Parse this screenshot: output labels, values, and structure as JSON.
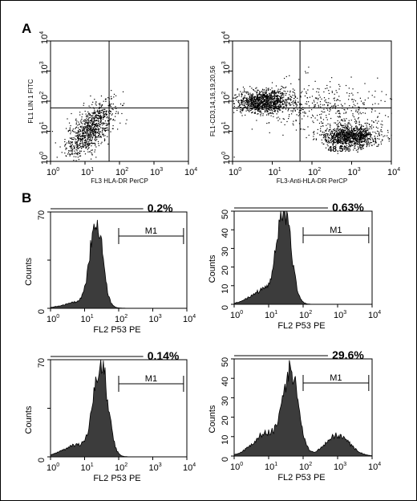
{
  "panel_letters": [
    "A",
    "B"
  ],
  "chart_data": [
    {
      "type": "scatter",
      "panel": "A",
      "xlabel": "FL3  HLA-DR PerCP",
      "ylabel": "FL1  LIN 1 FITC",
      "xlim": [
        1,
        10000
      ],
      "ylim": [
        1,
        10000
      ],
      "log_scale": true,
      "ticks": [
        "10",
        "10",
        "10",
        "10",
        "10"
      ],
      "tick_exponents": [
        "0",
        "1",
        "2",
        "3",
        "4"
      ],
      "quadrant_lines": {
        "x": 50,
        "y": 60
      },
      "clusters": [
        {
          "name": "",
          "x_center": 14,
          "y_center": 12,
          "spread": 0.35,
          "n": 900
        }
      ],
      "annotation": ""
    },
    {
      "type": "scatter",
      "panel": "A",
      "xlabel": "FL3-Anti-HLA-DR PerCP",
      "ylabel": "FL1-CD3,14,16,19,20,56",
      "xlim": [
        1,
        10000
      ],
      "ylim": [
        1,
        10000
      ],
      "log_scale": true,
      "ticks": [
        "10",
        "10",
        "10",
        "10",
        "10"
      ],
      "tick_exponents": [
        "0",
        "1",
        "2",
        "3",
        "4"
      ],
      "quadrant_lines": {
        "x": 50,
        "y": 60
      },
      "clusters": [
        {
          "name": "",
          "x_center": 6,
          "y_center": 100,
          "spread": 0.35,
          "n": 1100
        },
        {
          "name": "",
          "x_center": 900,
          "y_center": 7,
          "spread": 0.35,
          "n": 1100
        },
        {
          "name": "",
          "x_center": 200,
          "y_center": 60,
          "spread": 0.8,
          "n": 400
        }
      ],
      "annotation": "48.5%"
    },
    {
      "type": "area",
      "panel": "B",
      "xlabel": "FL2   P53 PE",
      "ylabel": "Counts",
      "xlim": [
        1,
        10000
      ],
      "ylim": [
        0,
        70
      ],
      "yticks": [
        0,
        35,
        70
      ],
      "ytick_labels": [
        "0",
        "",
        "70"
      ],
      "ticks": [
        "10",
        "10",
        "10",
        "10",
        "10"
      ],
      "tick_exponents": [
        "0",
        "1",
        "2",
        "3",
        "4"
      ],
      "gate_label": "M1",
      "gate_range": [
        100,
        8000
      ],
      "percent": "0.2%",
      "peaks": [
        {
          "center": 22,
          "height": 63,
          "width": 0.18
        },
        {
          "center": 8,
          "height": 5,
          "width": 0.45
        }
      ]
    },
    {
      "type": "area",
      "panel": "B",
      "xlabel": "FL2   P53 PE",
      "ylabel": "Counts",
      "xlim": [
        1,
        10000
      ],
      "ylim": [
        0,
        50
      ],
      "yticks": [
        0,
        10,
        20,
        30,
        40,
        50
      ],
      "ytick_labels": [
        "0",
        "10",
        "20",
        "30",
        "40",
        "50"
      ],
      "ticks": [
        "10",
        "10",
        "10",
        "10",
        "10"
      ],
      "tick_exponents": [
        "0",
        "1",
        "2",
        "3",
        "4"
      ],
      "gate_label": "M1",
      "gate_range": [
        100,
        8000
      ],
      "percent": "0.63%",
      "peaks": [
        {
          "center": 28,
          "height": 50,
          "width": 0.2
        },
        {
          "center": 8,
          "height": 8,
          "width": 0.4
        }
      ]
    },
    {
      "type": "area",
      "panel": "B",
      "xlabel": "FL2   P53 PE",
      "ylabel": "Counts",
      "xlim": [
        1,
        10000
      ],
      "ylim": [
        0,
        70
      ],
      "yticks": [
        0,
        35,
        70
      ],
      "ytick_labels": [
        "0",
        "",
        "70"
      ],
      "ticks": [
        "10",
        "10",
        "10",
        "10",
        "10"
      ],
      "tick_exponents": [
        "0",
        "1",
        "2",
        "3",
        "4"
      ],
      "gate_label": "M1",
      "gate_range": [
        100,
        8000
      ],
      "percent": "0.14%",
      "peaks": [
        {
          "center": 30,
          "height": 68,
          "width": 0.2
        },
        {
          "center": 7,
          "height": 9,
          "width": 0.45
        }
      ]
    },
    {
      "type": "area",
      "panel": "B",
      "xlabel": "FL2   P53 PE",
      "ylabel": "Counts",
      "xlim": [
        1,
        10000
      ],
      "ylim": [
        0,
        50
      ],
      "yticks": [
        0,
        10,
        20,
        30,
        40,
        50
      ],
      "ytick_labels": [
        "0",
        "10",
        "20",
        "30",
        "40",
        "50"
      ],
      "ticks": [
        "10",
        "10",
        "10",
        "10",
        "10"
      ],
      "tick_exponents": [
        "0",
        "1",
        "2",
        "3",
        "4"
      ],
      "gate_label": "M1",
      "gate_range": [
        100,
        8000
      ],
      "percent": "29.6%",
      "peaks": [
        {
          "center": 45,
          "height": 42,
          "width": 0.22
        },
        {
          "center": 9,
          "height": 12,
          "width": 0.4
        },
        {
          "center": 1000,
          "height": 11,
          "width": 0.35
        }
      ]
    }
  ]
}
